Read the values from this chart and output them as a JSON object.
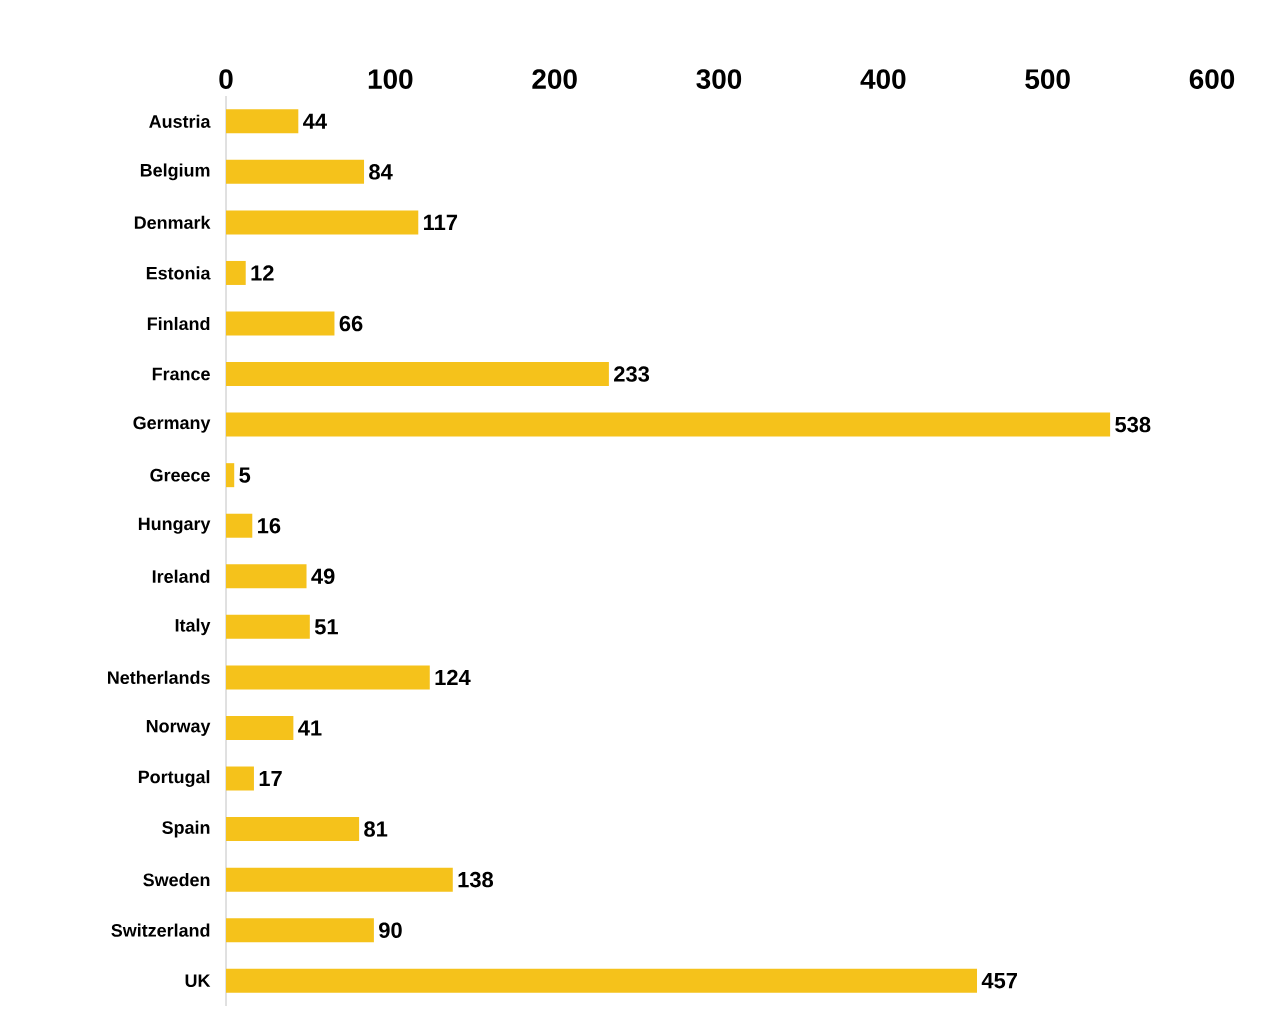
{
  "chart_data": {
    "type": "bar",
    "orientation": "horizontal",
    "categories": [
      "Austria",
      "Belgium",
      "Denmark",
      "Estonia",
      "Finland",
      "France",
      "Germany",
      "Greece",
      "Hungary",
      "Ireland",
      "Italy",
      "Netherlands",
      "Norway",
      "Portugal",
      "Spain",
      "Sweden",
      "Switzerland",
      "UK"
    ],
    "values": [
      44,
      84,
      117,
      12,
      66,
      233,
      538,
      5,
      16,
      49,
      51,
      124,
      41,
      17,
      81,
      138,
      90,
      457
    ],
    "color": "#f5c21b",
    "xlim": [
      0,
      600
    ],
    "xticks": [
      0,
      100,
      200,
      300,
      400,
      500,
      600
    ],
    "data_labels": true
  }
}
